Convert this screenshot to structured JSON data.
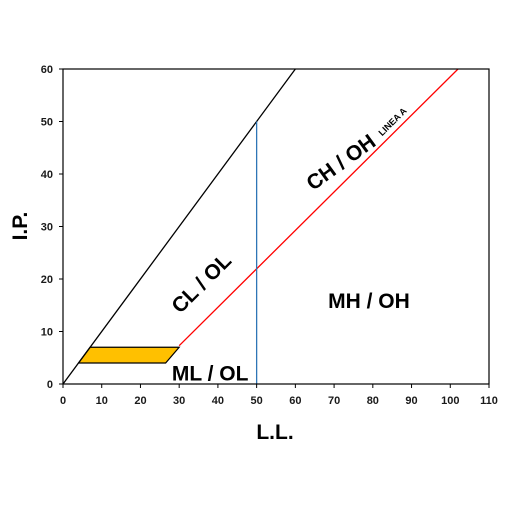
{
  "chart_data": {
    "type": "line",
    "xlabel": "L.L.",
    "ylabel": "I.P.",
    "xlim": [
      0,
      110
    ],
    "ylim": [
      0,
      60
    ],
    "xticks": [
      0,
      10,
      20,
      30,
      40,
      50,
      60,
      70,
      80,
      90,
      100,
      110
    ],
    "yticks": [
      0,
      10,
      20,
      30,
      40,
      50,
      60
    ],
    "grid": false,
    "lines": [
      {
        "id": "u-line",
        "color": "#000000",
        "points": [
          [
            0,
            0
          ],
          [
            60,
            60
          ]
        ]
      },
      {
        "id": "a-line",
        "name": "LINEA A",
        "color": "#ff0000",
        "points": [
          [
            30,
            7.3
          ],
          [
            102,
            60
          ]
        ]
      },
      {
        "id": "ll50-line",
        "color": "#2e75b6",
        "points": [
          [
            50,
            0
          ],
          [
            50,
            50
          ]
        ]
      }
    ],
    "shaded_zone": {
      "color": "#ffc000",
      "points": [
        [
          4,
          4
        ],
        [
          26.5,
          4
        ],
        [
          30,
          7
        ],
        [
          7,
          7
        ]
      ]
    },
    "regions": [
      {
        "label": "CL / OL",
        "x": 36,
        "y": 19,
        "angle": -45
      },
      {
        "label": "CH / OH",
        "x": 72,
        "y": 42,
        "angle": -36
      },
      {
        "label": "MH / OH",
        "x": 79,
        "y": 15.5,
        "angle": 0
      },
      {
        "label": "ML / OL",
        "x": 38,
        "y": 1.7,
        "angle": 0
      }
    ]
  }
}
